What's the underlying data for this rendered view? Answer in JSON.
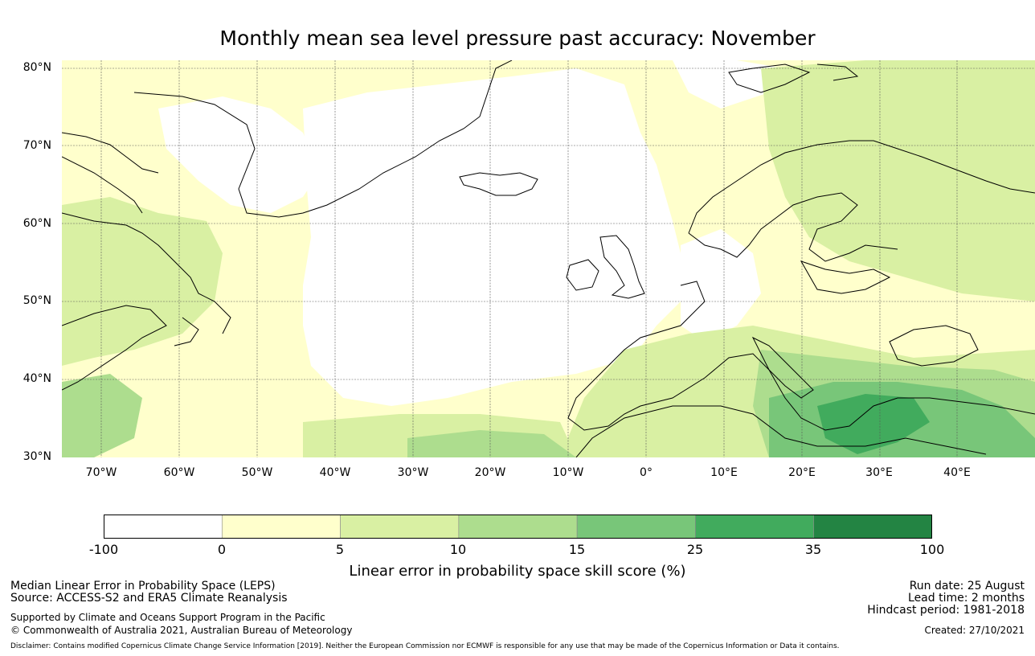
{
  "title": "Monthly mean sea level pressure past accuracy: November",
  "map": {
    "lat_ticks": [
      "80°N",
      "70°N",
      "60°N",
      "50°N",
      "40°N",
      "30°N"
    ],
    "lat_values": [
      80,
      70,
      60,
      50,
      40,
      30
    ],
    "lon_ticks": [
      "70°W",
      "60°W",
      "50°W",
      "40°W",
      "30°W",
      "20°W",
      "10°W",
      "0°",
      "10°E",
      "20°E",
      "30°E",
      "40°E"
    ],
    "lon_values": [
      -70,
      -60,
      -50,
      -40,
      -30,
      -20,
      -10,
      0,
      10,
      20,
      30,
      40
    ],
    "lon_range": [
      -75,
      50
    ],
    "lat_range": [
      30,
      81
    ],
    "gridlines": true
  },
  "colorbar": {
    "tick_labels": [
      "-100",
      "0",
      "5",
      "10",
      "15",
      "25",
      "35",
      "100"
    ],
    "colors": [
      "#ffffff",
      "#ffffcc",
      "#d9f0a3",
      "#addd8e",
      "#78c679",
      "#41ab5d",
      "#238443"
    ],
    "label": "Linear error in probability space skill score (%)"
  },
  "info_left": {
    "line1": "Median Linear Error in Probability Space (LEPS)",
    "line2": "Source: ACCESS-S2 and ERA5 Climate Reanalysis",
    "line3": "Supported by Climate and Oceans Support Program in the Pacific",
    "line4": "© Commonwealth of Australia 2021, Australian Bureau of Meteorology"
  },
  "info_right": {
    "run_date": "Run date: 25 August",
    "lead_time": "Lead time: 2 months",
    "hindcast": "Hindcast period: 1981-2018",
    "created": "Created: 27/10/2021"
  },
  "disclaimer": "Disclaimer: Contains modified Copernicus Climate Change Service Information [2019]. Neither the European Commission nor ECMWF is responsible for any use that may be made of the Copernicus Information or Data it contains."
}
